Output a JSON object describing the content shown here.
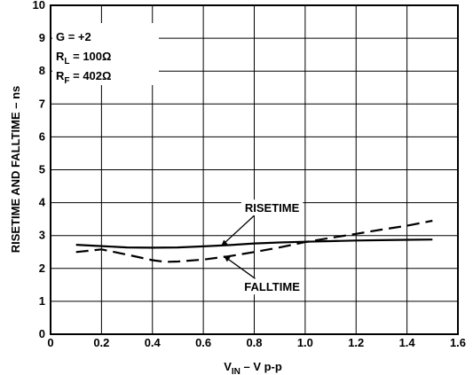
{
  "chart_data": {
    "type": "line",
    "xlabel": {
      "main": "V",
      "sub": "IN",
      "rest": " – V p-p"
    },
    "ylabel": "RISETIME AND FALLTIME – ns",
    "xlim": [
      0,
      1.6
    ],
    "ylim": [
      0,
      10
    ],
    "xticks": [
      "0",
      "0.2",
      "0.4",
      "0.6",
      "0.8",
      "1.0",
      "1.2",
      "1.4",
      "1.6"
    ],
    "yticks": [
      "0",
      "1",
      "2",
      "3",
      "4",
      "5",
      "6",
      "7",
      "8",
      "9",
      "10"
    ],
    "grid": true,
    "conditions": [
      {
        "main": "G = +2",
        "sub": "",
        "rest": ""
      },
      {
        "main": "R",
        "sub": "L",
        "rest": " = 100Ω"
      },
      {
        "main": "R",
        "sub": "F",
        "rest": " = 402Ω"
      }
    ],
    "series": [
      {
        "name": "RISETIME",
        "style": "solid",
        "x": [
          0.1,
          0.2,
          0.3,
          0.4,
          0.5,
          0.6,
          0.7,
          0.8,
          0.9,
          1.0,
          1.1,
          1.2,
          1.3,
          1.4,
          1.5
        ],
        "y": [
          2.72,
          2.68,
          2.64,
          2.63,
          2.64,
          2.67,
          2.71,
          2.76,
          2.79,
          2.81,
          2.83,
          2.85,
          2.86,
          2.87,
          2.88
        ]
      },
      {
        "name": "FALLTIME",
        "style": "dashed",
        "x": [
          0.1,
          0.2,
          0.3,
          0.4,
          0.45,
          0.5,
          0.6,
          0.7,
          0.8,
          0.9,
          1.0,
          1.1,
          1.2,
          1.3,
          1.4,
          1.5
        ],
        "y": [
          2.5,
          2.58,
          2.42,
          2.25,
          2.2,
          2.21,
          2.27,
          2.37,
          2.5,
          2.64,
          2.8,
          2.93,
          3.05,
          3.18,
          3.3,
          3.45
        ]
      }
    ],
    "annotations": [
      {
        "text": "RISETIME",
        "points_to": "RISETIME",
        "at_x": 0.67,
        "at_y": 2.68,
        "label_x": 0.87,
        "label_y": 3.85
      },
      {
        "text": "FALLTIME",
        "points_to": "FALLTIME",
        "at_x": 0.68,
        "at_y": 2.38,
        "label_x": 0.87,
        "label_y": 1.45
      }
    ]
  }
}
